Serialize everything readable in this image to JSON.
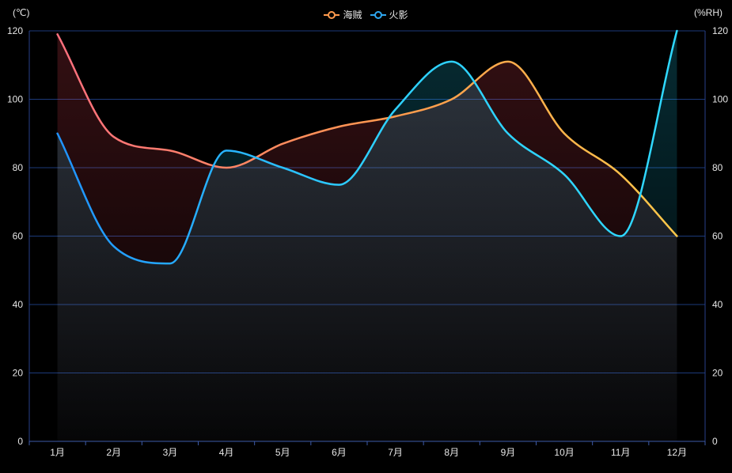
{
  "left_unit": "(℃)",
  "right_unit": "(%RH)",
  "legend": [
    {
      "name": "海贼",
      "color": "#ff9a4d"
    },
    {
      "name": "火影",
      "color": "#2ea7f0"
    }
  ],
  "chart_data": {
    "type": "line",
    "categories": [
      "1月",
      "2月",
      "3月",
      "4月",
      "5月",
      "6月",
      "7月",
      "8月",
      "9月",
      "10月",
      "11月",
      "12月"
    ],
    "series": [
      {
        "name": "海贼",
        "yAxis": "left",
        "values": [
          119,
          89,
          85,
          80,
          87,
          92,
          95,
          100,
          111,
          90,
          78,
          60
        ],
        "colors": [
          "#ff6f7e",
          "#ffa54d",
          "#ffc84a"
        ]
      },
      {
        "name": "火影",
        "yAxis": "right",
        "values": [
          90,
          57,
          52,
          85,
          80,
          75,
          97,
          111,
          90,
          78,
          60,
          120
        ],
        "colors": [
          "#1f90ff",
          "#2ec8ff",
          "#2fd8ff"
        ]
      }
    ],
    "yAxisLeft": {
      "min": 0,
      "max": 120,
      "ticks": [
        "0",
        "20",
        "40",
        "60",
        "80",
        "100",
        "120"
      ]
    },
    "yAxisRight": {
      "min": 0,
      "max": 120,
      "ticks": [
        "0",
        "20",
        "40",
        "60",
        "80",
        "100",
        "120"
      ]
    },
    "grid": true,
    "legend_position": "top-center"
  }
}
